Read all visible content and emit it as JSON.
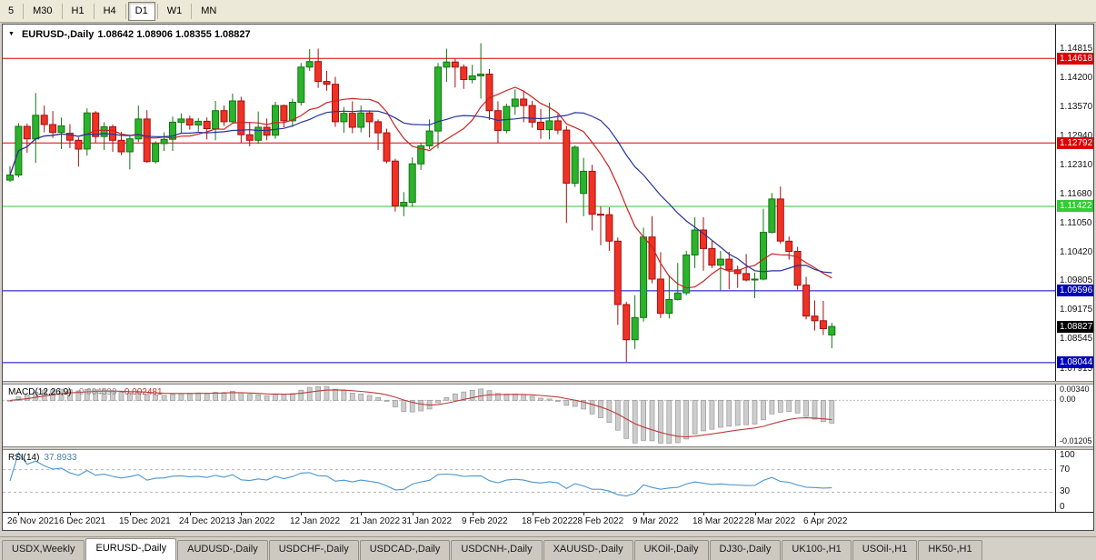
{
  "icons": {
    "dropdown": "▼"
  },
  "toolbar": {
    "timeframes": [
      {
        "label": "5",
        "active": false
      },
      {
        "label": "M30",
        "active": false
      },
      {
        "label": "H1",
        "active": false
      },
      {
        "label": "H4",
        "active": false
      },
      {
        "label": "D1",
        "active": true
      },
      {
        "label": "W1",
        "active": false
      },
      {
        "label": "MN",
        "active": false
      }
    ]
  },
  "chart": {
    "title": "EURUSD-,Daily",
    "ohlc": "1.08642 1.08906 1.08355 1.08827"
  },
  "price_axis": {
    "labels": [
      {
        "text": "1.14815",
        "price": 1.14815
      },
      {
        "text": "1.14200",
        "price": 1.142
      },
      {
        "text": "1.13570",
        "price": 1.1357
      },
      {
        "text": "1.12940",
        "price": 1.1294
      },
      {
        "text": "1.12310",
        "price": 1.1231
      },
      {
        "text": "1.11680",
        "price": 1.1168
      },
      {
        "text": "1.11050",
        "price": 1.1105
      },
      {
        "text": "1.10420",
        "price": 1.1042
      },
      {
        "text": "1.09805",
        "price": 1.09805
      },
      {
        "text": "1.09175",
        "price": 1.09175
      },
      {
        "text": "1.08545",
        "price": 1.08545
      },
      {
        "text": "1.07915",
        "price": 1.07915
      }
    ],
    "badges": [
      {
        "text": "1.14618",
        "price": 1.14618,
        "color": "#dd0000",
        "text_color": "#ffffff"
      },
      {
        "text": "1.12792",
        "price": 1.12792,
        "color": "#dd0000",
        "text_color": "#ffffff"
      },
      {
        "text": "1.11422",
        "price": 1.11422,
        "color": "#33cc33",
        "text_color": "#ffffff"
      },
      {
        "text": "1.09596",
        "price": 1.09596,
        "color": "#0000bb",
        "text_color": "#ffffff"
      },
      {
        "text": "1.08827",
        "price": 1.08827,
        "color": "#000000",
        "text_color": "#ffffff"
      },
      {
        "text": "1.08044",
        "price": 1.08044,
        "color": "#0000bb",
        "text_color": "#ffffff"
      }
    ]
  },
  "macd_panel": {
    "label": "MACD(12,26,9)",
    "value": "-0.004599",
    "signal": "-0.002481",
    "axis": [
      {
        "text": "0.00340",
        "value": 0.0034
      },
      {
        "text": "0.00",
        "value": 0
      },
      {
        "text": "-0.01205",
        "value": -0.01205
      }
    ]
  },
  "rsi_panel": {
    "label": "RSI(14)",
    "value": "37.8933",
    "levels": [
      70,
      30
    ],
    "axis": [
      {
        "text": "100",
        "value": 100
      },
      {
        "text": "70",
        "value": 70
      },
      {
        "text": "30",
        "value": 30
      },
      {
        "text": "0",
        "value": 0
      }
    ]
  },
  "date_axis": {
    "labels": [
      {
        "text": "26 Nov 2021",
        "idx": 1
      },
      {
        "text": "6 Dec 2021",
        "idx": 7
      },
      {
        "text": "15 Dec 2021",
        "idx": 14
      },
      {
        "text": "24 Dec 2021",
        "idx": 21
      },
      {
        "text": "3 Jan 2022",
        "idx": 27
      },
      {
        "text": "12 Jan 2022",
        "idx": 34
      },
      {
        "text": "21 Jan 2022",
        "idx": 41
      },
      {
        "text": "31 Jan 2022",
        "idx": 47
      },
      {
        "text": "9 Feb 2022",
        "idx": 54
      },
      {
        "text": "18 Feb 2022",
        "idx": 61
      },
      {
        "text": "28 Feb 2022",
        "idx": 67
      },
      {
        "text": "9 Mar 2022",
        "idx": 74
      },
      {
        "text": "18 Mar 2022",
        "idx": 81
      },
      {
        "text": "28 Mar 2022",
        "idx": 87
      },
      {
        "text": "6 Apr 2022",
        "idx": 94
      }
    ]
  },
  "tabs": [
    {
      "label": "USDX,Weekly",
      "active": false
    },
    {
      "label": "EURUSD-,Daily",
      "active": true
    },
    {
      "label": "AUDUSD-,Daily",
      "active": false
    },
    {
      "label": "USDCHF-,Daily",
      "active": false
    },
    {
      "label": "USDCAD-,Daily",
      "active": false
    },
    {
      "label": "USDCNH-,Daily",
      "active": false
    },
    {
      "label": "XAUUSD-,Daily",
      "active": false
    },
    {
      "label": "UKOil-,Daily",
      "active": false
    },
    {
      "label": "DJ30-,Daily",
      "active": false
    },
    {
      "label": "UK100-,H1",
      "active": false
    },
    {
      "label": "USOil-,H1",
      "active": false
    },
    {
      "label": "HK50-,H1",
      "active": false
    }
  ],
  "chart_data": {
    "type": "candlestick",
    "symbol": "EURUSD-",
    "timeframe": "Daily",
    "last_bar": {
      "open": 1.08642,
      "high": 1.08906,
      "low": 1.08355,
      "close": 1.08827
    },
    "price_range": [
      1.0765,
      1.1535
    ],
    "hlines": [
      {
        "price": 1.14618,
        "color": "#e00000"
      },
      {
        "price": 1.12792,
        "color": "#e00000"
      },
      {
        "price": 1.11422,
        "color": "#33cc33"
      },
      {
        "price": 1.09596,
        "color": "#0000cd"
      },
      {
        "price": 1.08044,
        "color": "#0000cd"
      }
    ],
    "ma": [
      {
        "period": 10,
        "color": "#cc2222"
      },
      {
        "period": 20,
        "color": "#26339b"
      }
    ],
    "macd": {
      "fast": 12,
      "slow": 26,
      "signal": 9,
      "current": -0.004599,
      "current_signal": -0.002481
    },
    "rsi": {
      "period": 14,
      "current": 37.8933,
      "range": [
        0,
        100
      ]
    },
    "colors": {
      "up": "#2bb32b",
      "up_edge": "#137413",
      "down": "#ef3224",
      "down_edge": "#a31010",
      "macd_hist": "#cdcdcd",
      "macd_hist_edge": "#9c9c9c",
      "macd_signal": "#c03a3a",
      "rsi_line": "#4a96d2"
    },
    "candles": [
      [
        1.1199,
        1.1229,
        1.1195,
        1.121
      ],
      [
        1.121,
        1.1322,
        1.1205,
        1.1315
      ],
      [
        1.1315,
        1.1321,
        1.1258,
        1.1288
      ],
      [
        1.1288,
        1.1387,
        1.1236,
        1.1339
      ],
      [
        1.1339,
        1.136,
        1.1302,
        1.1319
      ],
      [
        1.1319,
        1.1348,
        1.129,
        1.1302
      ],
      [
        1.1302,
        1.1334,
        1.1266,
        1.1316
      ],
      [
        1.13,
        1.132,
        1.1268,
        1.1285
      ],
      [
        1.1285,
        1.1291,
        1.1228,
        1.1266
      ],
      [
        1.1266,
        1.1354,
        1.1252,
        1.1344
      ],
      [
        1.1344,
        1.1348,
        1.128,
        1.1293
      ],
      [
        1.1293,
        1.1324,
        1.1264,
        1.1314
      ],
      [
        1.1314,
        1.1319,
        1.126,
        1.1285
      ],
      [
        1.1285,
        1.1303,
        1.1253,
        1.126
      ],
      [
        1.126,
        1.1296,
        1.1222,
        1.1288
      ],
      [
        1.1288,
        1.136,
        1.1281,
        1.1331
      ],
      [
        1.1331,
        1.135,
        1.1236,
        1.1239
      ],
      [
        1.1239,
        1.1283,
        1.1234,
        1.1278
      ],
      [
        1.1278,
        1.1302,
        1.1262,
        1.1287
      ],
      [
        1.1287,
        1.1336,
        1.1262,
        1.1324
      ],
      [
        1.1324,
        1.1343,
        1.13,
        1.1331
      ],
      [
        1.1331,
        1.1338,
        1.1308,
        1.1318
      ],
      [
        1.1318,
        1.1333,
        1.1304,
        1.1326
      ],
      [
        1.1326,
        1.1334,
        1.1287,
        1.131
      ],
      [
        1.131,
        1.137,
        1.1285,
        1.1349
      ],
      [
        1.1349,
        1.136,
        1.1316,
        1.1325
      ],
      [
        1.1325,
        1.1386,
        1.1321,
        1.137
      ],
      [
        1.137,
        1.1379,
        1.1279,
        1.1297
      ],
      [
        1.1297,
        1.1323,
        1.1272,
        1.1285
      ],
      [
        1.1285,
        1.1347,
        1.1277,
        1.1313
      ],
      [
        1.1313,
        1.1332,
        1.1285,
        1.1296
      ],
      [
        1.1296,
        1.1368,
        1.1288,
        1.136
      ],
      [
        1.136,
        1.1362,
        1.1313,
        1.1327
      ],
      [
        1.1327,
        1.1375,
        1.1314,
        1.1367
      ],
      [
        1.1367,
        1.1452,
        1.136,
        1.1443
      ],
      [
        1.1443,
        1.1482,
        1.1435,
        1.1455
      ],
      [
        1.1455,
        1.1483,
        1.1398,
        1.1412
      ],
      [
        1.1412,
        1.1435,
        1.1392,
        1.1406
      ],
      [
        1.1406,
        1.1422,
        1.1314,
        1.1325
      ],
      [
        1.1325,
        1.1357,
        1.1301,
        1.1343
      ],
      [
        1.1343,
        1.1369,
        1.13,
        1.1313
      ],
      [
        1.1313,
        1.136,
        1.1302,
        1.1344
      ],
      [
        1.1344,
        1.1349,
        1.1291,
        1.1325
      ],
      [
        1.1325,
        1.133,
        1.1264,
        1.1301
      ],
      [
        1.1301,
        1.131,
        1.1235,
        1.124
      ],
      [
        1.124,
        1.1245,
        1.1131,
        1.1143
      ],
      [
        1.1143,
        1.1173,
        1.1121,
        1.1151
      ],
      [
        1.1151,
        1.1248,
        1.1141,
        1.1234
      ],
      [
        1.1234,
        1.1279,
        1.1221,
        1.1273
      ],
      [
        1.1273,
        1.133,
        1.1266,
        1.1305
      ],
      [
        1.1305,
        1.1452,
        1.1267,
        1.1443
      ],
      [
        1.1443,
        1.1483,
        1.1411,
        1.1454
      ],
      [
        1.1454,
        1.1461,
        1.1399,
        1.1443
      ],
      [
        1.1443,
        1.1449,
        1.1396,
        1.1416
      ],
      [
        1.1416,
        1.1448,
        1.1408,
        1.1424
      ],
      [
        1.1424,
        1.1495,
        1.1375,
        1.1428
      ],
      [
        1.1428,
        1.1439,
        1.1329,
        1.1349
      ],
      [
        1.1349,
        1.1369,
        1.1278,
        1.1306
      ],
      [
        1.1306,
        1.1364,
        1.13,
        1.1358
      ],
      [
        1.1358,
        1.1395,
        1.134,
        1.1374
      ],
      [
        1.1374,
        1.1392,
        1.1324,
        1.136
      ],
      [
        1.136,
        1.137,
        1.1312,
        1.1324
      ],
      [
        1.1324,
        1.1353,
        1.1288,
        1.1308
      ],
      [
        1.1308,
        1.1366,
        1.1287,
        1.1327
      ],
      [
        1.1327,
        1.1342,
        1.1298,
        1.1307
      ],
      [
        1.1307,
        1.1316,
        1.1106,
        1.1192
      ],
      [
        1.1192,
        1.1274,
        1.1184,
        1.127
      ],
      [
        1.117,
        1.1247,
        1.1121,
        1.1218
      ],
      [
        1.1218,
        1.1232,
        1.109,
        1.1125
      ],
      [
        1.1125,
        1.1142,
        1.1058,
        1.1124
      ],
      [
        1.1124,
        1.114,
        1.1046,
        1.1067
      ],
      [
        1.1067,
        1.1075,
        1.0886,
        1.093
      ],
      [
        1.093,
        1.0936,
        1.0806,
        1.0854
      ],
      [
        1.0854,
        1.095,
        1.0834,
        1.0902
      ],
      [
        1.0902,
        1.1096,
        1.0893,
        1.1076
      ],
      [
        1.1076,
        1.1121,
        1.0976,
        1.0985
      ],
      [
        1.0985,
        1.1043,
        1.0901,
        1.0911
      ],
      [
        1.0911,
        1.0991,
        1.09,
        1.0941
      ],
      [
        1.0941,
        1.102,
        1.0939,
        1.0955
      ],
      [
        1.0955,
        1.1046,
        1.095,
        1.1037
      ],
      [
        1.1037,
        1.1119,
        1.1009,
        1.1091
      ],
      [
        1.1091,
        1.1119,
        1.1003,
        1.1051
      ],
      [
        1.1051,
        1.1069,
        1.1009,
        1.1015
      ],
      [
        1.1015,
        1.1046,
        1.0961,
        1.1028
      ],
      [
        1.1028,
        1.1044,
        1.0963,
        1.1005
      ],
      [
        1.1005,
        1.1014,
        1.0966,
        1.0997
      ],
      [
        1.0997,
        1.1039,
        1.098,
        1.0983
      ],
      [
        1.0983,
        1.0999,
        1.0944,
        1.0985
      ],
      [
        1.0985,
        1.1137,
        1.0982,
        1.1086
      ],
      [
        1.1086,
        1.1171,
        1.1084,
        1.1158
      ],
      [
        1.1158,
        1.1185,
        1.1061,
        1.1067
      ],
      [
        1.1067,
        1.1077,
        1.1027,
        1.1045
      ],
      [
        1.1045,
        1.1055,
        1.0962,
        1.0972
      ],
      [
        1.0972,
        1.099,
        1.0898,
        1.0905
      ],
      [
        1.0905,
        1.0939,
        1.0874,
        1.0895
      ],
      [
        1.0895,
        1.0938,
        1.0864,
        1.0878
      ],
      [
        1.08642,
        1.08906,
        1.08355,
        1.08827
      ]
    ]
  }
}
